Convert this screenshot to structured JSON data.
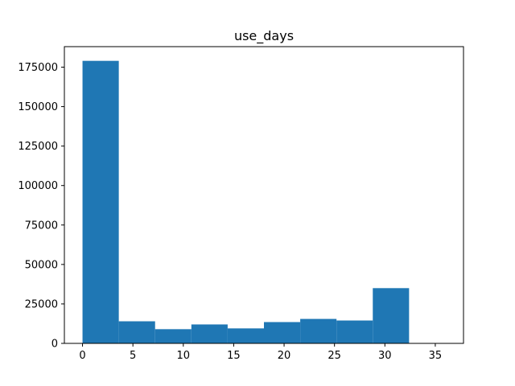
{
  "chart_data": {
    "type": "bar",
    "title": "use_days",
    "xlabel": "",
    "ylabel": "",
    "bar_color": "#1f77b4",
    "grid": false,
    "xlim": [
      -1.8,
      37.8
    ],
    "ylim": [
      0,
      188000
    ],
    "x_ticks": [
      0,
      5,
      10,
      15,
      20,
      25,
      30,
      35
    ],
    "y_ticks": [
      0,
      25000,
      50000,
      75000,
      100000,
      125000,
      150000,
      175000
    ],
    "bins": [
      {
        "x0": 0.0,
        "x1": 3.6,
        "value": 179000
      },
      {
        "x0": 3.6,
        "x1": 7.2,
        "value": 14000
      },
      {
        "x0": 7.2,
        "x1": 10.8,
        "value": 9000
      },
      {
        "x0": 10.8,
        "x1": 14.4,
        "value": 12000
      },
      {
        "x0": 14.4,
        "x1": 18.0,
        "value": 9500
      },
      {
        "x0": 18.0,
        "x1": 21.6,
        "value": 13500
      },
      {
        "x0": 21.6,
        "x1": 25.2,
        "value": 15500
      },
      {
        "x0": 25.2,
        "x1": 28.8,
        "value": 14500
      },
      {
        "x0": 28.8,
        "x1": 32.4,
        "value": 35000
      }
    ]
  }
}
